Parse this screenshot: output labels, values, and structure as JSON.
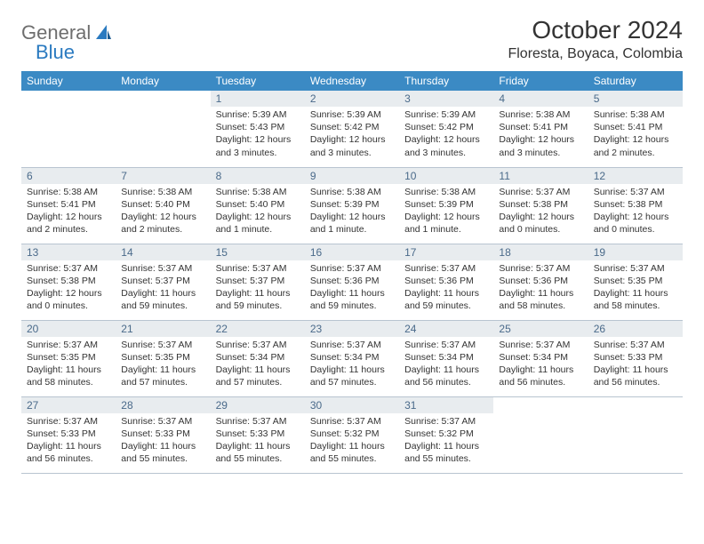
{
  "logo": {
    "part1": "General",
    "part2": "Blue"
  },
  "title": "October 2024",
  "location": "Floresta, Boyaca, Colombia",
  "weekdays": [
    "Sunday",
    "Monday",
    "Tuesday",
    "Wednesday",
    "Thursday",
    "Friday",
    "Saturday"
  ],
  "colors": {
    "header_bg": "#3b8ac4",
    "daynum_bg": "#e8ecef",
    "daynum_color": "#4a6a8a",
    "border": "#b8c4d0",
    "logo_grey": "#6e6e6e",
    "logo_blue": "#2a7ac0"
  },
  "weeks": [
    [
      null,
      null,
      {
        "n": "1",
        "sr": "5:39 AM",
        "ss": "5:43 PM",
        "dl": "12 hours and 3 minutes."
      },
      {
        "n": "2",
        "sr": "5:39 AM",
        "ss": "5:42 PM",
        "dl": "12 hours and 3 minutes."
      },
      {
        "n": "3",
        "sr": "5:39 AM",
        "ss": "5:42 PM",
        "dl": "12 hours and 3 minutes."
      },
      {
        "n": "4",
        "sr": "5:38 AM",
        "ss": "5:41 PM",
        "dl": "12 hours and 3 minutes."
      },
      {
        "n": "5",
        "sr": "5:38 AM",
        "ss": "5:41 PM",
        "dl": "12 hours and 2 minutes."
      }
    ],
    [
      {
        "n": "6",
        "sr": "5:38 AM",
        "ss": "5:41 PM",
        "dl": "12 hours and 2 minutes."
      },
      {
        "n": "7",
        "sr": "5:38 AM",
        "ss": "5:40 PM",
        "dl": "12 hours and 2 minutes."
      },
      {
        "n": "8",
        "sr": "5:38 AM",
        "ss": "5:40 PM",
        "dl": "12 hours and 1 minute."
      },
      {
        "n": "9",
        "sr": "5:38 AM",
        "ss": "5:39 PM",
        "dl": "12 hours and 1 minute."
      },
      {
        "n": "10",
        "sr": "5:38 AM",
        "ss": "5:39 PM",
        "dl": "12 hours and 1 minute."
      },
      {
        "n": "11",
        "sr": "5:37 AM",
        "ss": "5:38 PM",
        "dl": "12 hours and 0 minutes."
      },
      {
        "n": "12",
        "sr": "5:37 AM",
        "ss": "5:38 PM",
        "dl": "12 hours and 0 minutes."
      }
    ],
    [
      {
        "n": "13",
        "sr": "5:37 AM",
        "ss": "5:38 PM",
        "dl": "12 hours and 0 minutes."
      },
      {
        "n": "14",
        "sr": "5:37 AM",
        "ss": "5:37 PM",
        "dl": "11 hours and 59 minutes."
      },
      {
        "n": "15",
        "sr": "5:37 AM",
        "ss": "5:37 PM",
        "dl": "11 hours and 59 minutes."
      },
      {
        "n": "16",
        "sr": "5:37 AM",
        "ss": "5:36 PM",
        "dl": "11 hours and 59 minutes."
      },
      {
        "n": "17",
        "sr": "5:37 AM",
        "ss": "5:36 PM",
        "dl": "11 hours and 59 minutes."
      },
      {
        "n": "18",
        "sr": "5:37 AM",
        "ss": "5:36 PM",
        "dl": "11 hours and 58 minutes."
      },
      {
        "n": "19",
        "sr": "5:37 AM",
        "ss": "5:35 PM",
        "dl": "11 hours and 58 minutes."
      }
    ],
    [
      {
        "n": "20",
        "sr": "5:37 AM",
        "ss": "5:35 PM",
        "dl": "11 hours and 58 minutes."
      },
      {
        "n": "21",
        "sr": "5:37 AM",
        "ss": "5:35 PM",
        "dl": "11 hours and 57 minutes."
      },
      {
        "n": "22",
        "sr": "5:37 AM",
        "ss": "5:34 PM",
        "dl": "11 hours and 57 minutes."
      },
      {
        "n": "23",
        "sr": "5:37 AM",
        "ss": "5:34 PM",
        "dl": "11 hours and 57 minutes."
      },
      {
        "n": "24",
        "sr": "5:37 AM",
        "ss": "5:34 PM",
        "dl": "11 hours and 56 minutes."
      },
      {
        "n": "25",
        "sr": "5:37 AM",
        "ss": "5:34 PM",
        "dl": "11 hours and 56 minutes."
      },
      {
        "n": "26",
        "sr": "5:37 AM",
        "ss": "5:33 PM",
        "dl": "11 hours and 56 minutes."
      }
    ],
    [
      {
        "n": "27",
        "sr": "5:37 AM",
        "ss": "5:33 PM",
        "dl": "11 hours and 56 minutes."
      },
      {
        "n": "28",
        "sr": "5:37 AM",
        "ss": "5:33 PM",
        "dl": "11 hours and 55 minutes."
      },
      {
        "n": "29",
        "sr": "5:37 AM",
        "ss": "5:33 PM",
        "dl": "11 hours and 55 minutes."
      },
      {
        "n": "30",
        "sr": "5:37 AM",
        "ss": "5:32 PM",
        "dl": "11 hours and 55 minutes."
      },
      {
        "n": "31",
        "sr": "5:37 AM",
        "ss": "5:32 PM",
        "dl": "11 hours and 55 minutes."
      },
      null,
      null
    ]
  ],
  "labels": {
    "sunrise": "Sunrise: ",
    "sunset": "Sunset: ",
    "daylight": "Daylight: "
  }
}
